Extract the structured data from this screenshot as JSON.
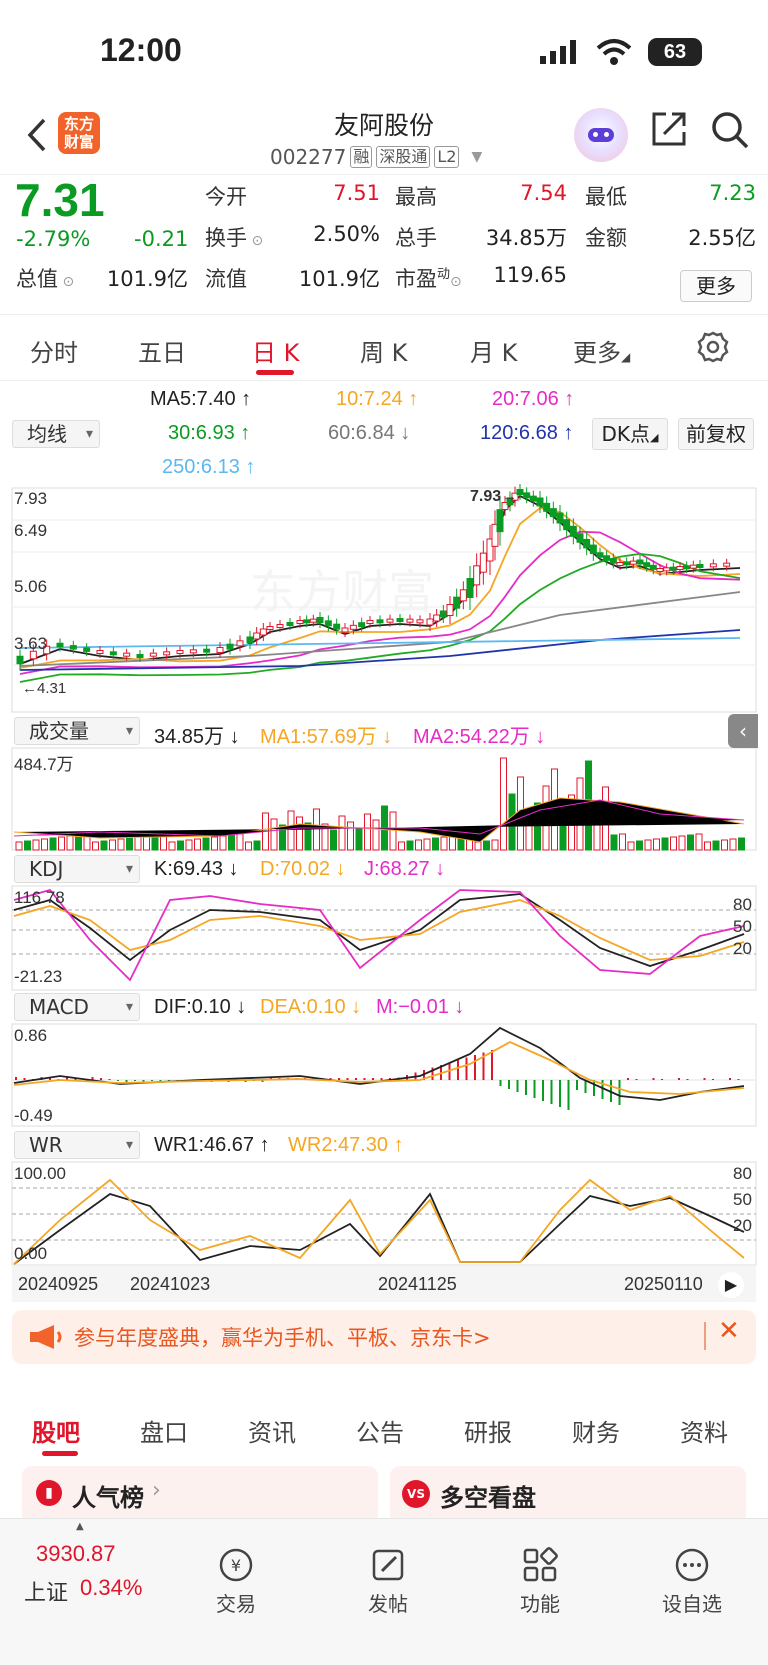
{
  "status_bar": {
    "time": "12:00",
    "battery": "63"
  },
  "header": {
    "title": "友阿股份",
    "code": "002277",
    "tags": [
      "融",
      "深股通",
      "L2"
    ],
    "logo_text": "东方财富"
  },
  "quote": {
    "price": "7.31",
    "change_pct": "-2.79%",
    "change": "-0.21",
    "open_label": "今开",
    "open": "7.51",
    "high_label": "最高",
    "high": "7.54",
    "low_label": "最低",
    "low": "7.23",
    "turnover_label": "换手",
    "turnover": "2.50%",
    "volume_label": "总手",
    "volume": "34.85万",
    "amount_label": "金额",
    "amount": "2.55亿",
    "mktcap_label": "总值",
    "mktcap": "101.9亿",
    "float_label": "流值",
    "float": "101.9亿",
    "pe_label": "市盈",
    "pe_sup": "动",
    "pe": "119.65",
    "more": "更多"
  },
  "tabs": [
    "分时",
    "五日",
    "日 K",
    "周 K",
    "月 K",
    "更多"
  ],
  "ma_panel": {
    "selector": "均线",
    "ma5": "MA5:7.40 ↑",
    "ma10": "10:7.24 ↑",
    "ma20": "20:7.06 ↑",
    "ma30": "30:6.93 ↑",
    "ma60": "60:6.84 ↓",
    "ma120": "120:6.68 ↑",
    "ma250": "250:6.13 ↑",
    "dk": "DK点",
    "fq": "前复权"
  },
  "kline": {
    "y_labels": [
      "7.93",
      "6.49",
      "5.06",
      "3.63"
    ],
    "peak": "7.93→",
    "low_mark": "←4.31",
    "watermark": "东方财富"
  },
  "volume_panel": {
    "selector": "成交量",
    "vol": "34.85万 ↓",
    "ma1": "MA1:57.69万 ↓",
    "ma2": "MA2:54.22万 ↓",
    "ymax": "484.7万"
  },
  "kdj_panel": {
    "selector": "KDJ",
    "k": "K:69.43 ↓",
    "d": "D:70.02 ↓",
    "j": "J:68.27 ↓",
    "ymax": "116.78",
    "ymin": "-21.23",
    "levels": [
      "80",
      "50",
      "20"
    ]
  },
  "macd_panel": {
    "selector": "MACD",
    "dif": "DIF:0.10 ↓",
    "dea": "DEA:0.10 ↓",
    "m": "M:−0.01 ↓",
    "ymax": "0.86",
    "ymin": "-0.49"
  },
  "wr_panel": {
    "selector": "WR",
    "wr1": "WR1:46.67 ↑",
    "wr2": "WR2:47.30 ↑",
    "ymax": "100.00",
    "ymin": "0.00",
    "levels": [
      "80",
      "50",
      "20"
    ]
  },
  "dates": [
    "20240925",
    "20241023",
    "20241125",
    "20250110"
  ],
  "promo": {
    "text": "参与年度盛典，赢华为手机、平板、京东卡>"
  },
  "bottom_tabs": [
    "股吧",
    "盘口",
    "资讯",
    "公告",
    "研报",
    "财务",
    "资料"
  ],
  "cards": [
    "人气榜",
    "多空看盘"
  ],
  "nav": {
    "index_value": "3930.87",
    "index_name": "上证",
    "index_change": "0.34%",
    "items": [
      "交易",
      "发帖",
      "功能",
      "设自选"
    ]
  },
  "colors": {
    "up": "#e0162b",
    "down": "#0a9b22",
    "ma5": "#222222",
    "ma10": "#f5a623",
    "ma20": "#e62bc7",
    "ma30": "#22aa22",
    "ma60": "#888888",
    "ma120": "#2233aa",
    "ma250": "#5bb8f0"
  }
}
